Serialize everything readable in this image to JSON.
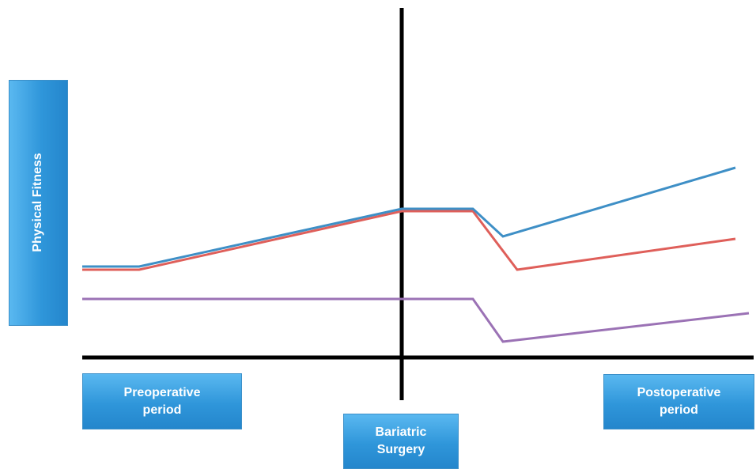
{
  "diagram": {
    "y_axis_label": "Physical Fitness",
    "boxes": {
      "preoperative": "Preoperative\nperiod",
      "surgery": "Bariatric\nSurgery",
      "postoperative": "Postoperative\nperiod"
    },
    "colors": {
      "axis": "#000000",
      "box_fill": "#2f96da",
      "line_blue": "#3e8fc6",
      "line_red": "#df5f5a",
      "line_purple": "#9b72b5"
    }
  }
}
